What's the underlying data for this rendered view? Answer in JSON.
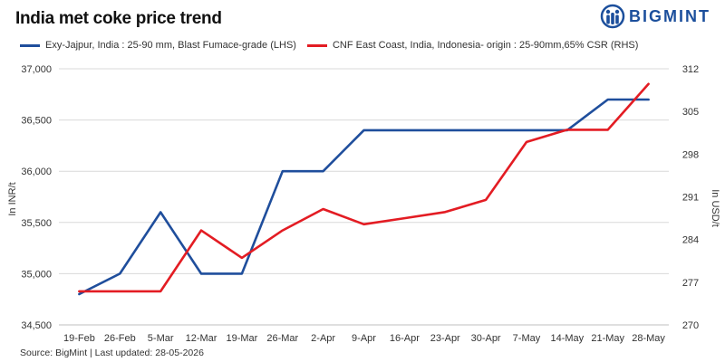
{
  "header": {
    "title": "India met coke price trend",
    "logo_text": "BIGMINT"
  },
  "footer": {
    "source": "Source: BigMint | Last updated: 28-05-2026"
  },
  "chart_data": {
    "type": "line",
    "title": "India met coke price trend",
    "ylabel": "In INR/t",
    "y2label": "In USD/t",
    "ylim": [
      34500,
      37000
    ],
    "y2lim": [
      270,
      312
    ],
    "yticks": [
      "34,500",
      "35,000",
      "35,500",
      "36,000",
      "36,500",
      "37,000"
    ],
    "y2ticks": [
      "270",
      "277",
      "284",
      "291",
      "298",
      "305",
      "312"
    ],
    "categories": [
      "19-Feb",
      "26-Feb",
      "5-Mar",
      "12-Mar",
      "19-Mar",
      "26-Mar",
      "2-Apr",
      "9-Apr",
      "16-Apr",
      "23-Apr",
      "30-Apr",
      "7-May",
      "14-May",
      "21-May",
      "28-May"
    ],
    "grid": true,
    "legend_position": "top",
    "series": [
      {
        "name": "Exy-Jajpur, India : 25-90 mm, Blast Fumace-grade (LHS)",
        "axis": "left",
        "color": "#1f4e9c",
        "values": [
          34800,
          35000,
          35600,
          35000,
          35000,
          36000,
          36000,
          36400,
          36400,
          36400,
          36400,
          36400,
          36400,
          36700,
          36700
        ]
      },
      {
        "name": "CNF East Coast, India, Indonesia- origin : 25-90mm,65% CSR (RHS)",
        "axis": "right",
        "color": "#e31c23",
        "values": [
          275.5,
          275.5,
          275.5,
          285.5,
          281,
          285.5,
          289,
          286.5,
          287.5,
          288.5,
          290.5,
          300,
          302,
          302,
          309.5
        ]
      }
    ]
  }
}
